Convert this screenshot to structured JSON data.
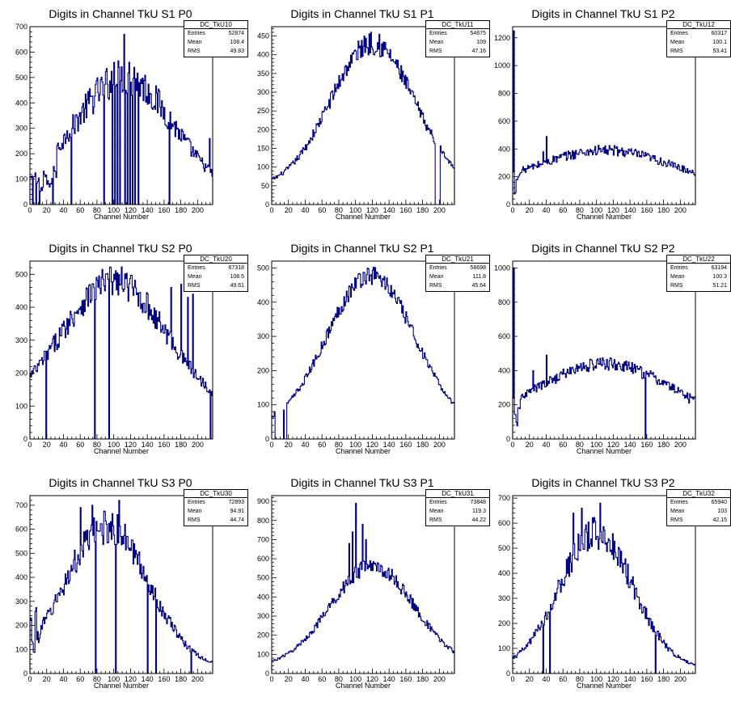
{
  "colors": {
    "histogram": "#000080",
    "frame": "#000000",
    "background": "#ffffff"
  },
  "chart_data": [
    {
      "type": "bar",
      "title": "Digits in Channel TkU S1 P0",
      "xlabel": "Channel Number",
      "ylabel": "",
      "xlim": [
        0,
        218
      ],
      "ylim": [
        0,
        700
      ],
      "xticks": [
        0,
        20,
        40,
        60,
        80,
        100,
        120,
        140,
        160,
        180,
        200
      ],
      "yticks": [
        0,
        100,
        200,
        300,
        400,
        500,
        600,
        700
      ],
      "stats": {
        "name": "DC_TkU10",
        "rows": [
          {
            "label": "Entries",
            "value": "52874"
          },
          {
            "label": "Mean",
            "value": "108.4"
          },
          {
            "label": "RMS",
            "value": "49.83"
          }
        ]
      },
      "shape": {
        "peak_x": 112,
        "peak_y": 500,
        "sigma": 60,
        "shape": "gauss",
        "base": 20,
        "noise": 0.15
      },
      "dips": [
        2,
        6,
        10,
        25,
        48,
        52,
        54,
        56,
        58,
        60,
        62,
        64,
        66,
        68,
        70,
        72,
        74,
        76,
        78,
        80,
        82,
        84,
        86,
        88,
        90,
        92,
        94,
        96,
        98,
        100,
        102,
        104,
        106,
        108,
        110,
        112,
        114,
        116,
        118,
        120,
        122,
        124,
        126,
        128,
        130,
        132,
        134,
        136,
        138,
        140,
        142,
        144,
        146,
        148,
        150,
        152,
        154,
        156,
        158,
        160,
        162,
        164,
        166,
        168,
        170,
        172,
        174,
        176,
        178,
        180,
        182,
        184,
        186,
        188,
        190,
        192,
        194,
        196,
        198,
        200,
        202,
        204,
        206,
        208,
        210,
        212,
        214
      ],
      "spikes": [
        {
          "x": 112,
          "y": 670
        },
        {
          "x": 100,
          "y": 560
        },
        {
          "x": 118,
          "y": 560
        },
        {
          "x": 124,
          "y": 540
        },
        {
          "x": 98,
          "y": 510
        },
        {
          "x": 130,
          "y": 480
        },
        {
          "x": 214,
          "y": 260
        },
        {
          "x": 44,
          "y": 290
        }
      ],
      "zero_channels": [
        3,
        7,
        11,
        27,
        49,
        88,
        98,
        101,
        104,
        107,
        113,
        116,
        119,
        122,
        125,
        129,
        166
      ],
      "lowfill": [
        [
          0,
          100
        ],
        [
          4,
          120
        ],
        [
          8,
          90
        ],
        [
          12,
          60
        ],
        [
          16,
          120
        ],
        [
          20,
          80
        ],
        [
          24,
          100
        ],
        [
          28,
          130
        ]
      ]
    },
    {
      "type": "bar",
      "title": "Digits in Channel TkU S1 P1",
      "xlabel": "Channel Number",
      "ylabel": "",
      "xlim": [
        0,
        218
      ],
      "ylim": [
        0,
        475
      ],
      "xticks": [
        0,
        20,
        40,
        60,
        80,
        100,
        120,
        140,
        160,
        180,
        200
      ],
      "yticks": [
        0,
        50,
        100,
        150,
        200,
        250,
        300,
        350,
        400,
        450
      ],
      "stats": {
        "name": "DC_TkU11",
        "rows": [
          {
            "label": "Entries",
            "value": "54675"
          },
          {
            "label": "Mean",
            "value": "109"
          },
          {
            "label": "RMS",
            "value": "47.16"
          }
        ]
      },
      "shape": {
        "peak_x": 120,
        "peak_y": 430,
        "sigma": 50,
        "shape": "gauss",
        "base": 45,
        "noise": 0.07
      },
      "spikes": [
        {
          "x": 118,
          "y": 460
        },
        {
          "x": 110,
          "y": 450
        },
        {
          "x": 128,
          "y": 455
        }
      ],
      "zero_channels": [
        195,
        196,
        197,
        198,
        199,
        200
      ],
      "lowfill": []
    },
    {
      "type": "bar",
      "title": "Digits in Channel TkU S1 P2",
      "xlabel": "Channel Number",
      "ylabel": "",
      "xlim": [
        0,
        218
      ],
      "ylim": [
        0,
        1280
      ],
      "xticks": [
        0,
        20,
        40,
        60,
        80,
        100,
        120,
        140,
        160,
        180,
        200
      ],
      "yticks": [
        0,
        200,
        400,
        600,
        800,
        1000,
        1200
      ],
      "stats": {
        "name": "DC_TkU12",
        "rows": [
          {
            "label": "Entries",
            "value": "60317"
          },
          {
            "label": "Mean",
            "value": "100.1"
          },
          {
            "label": "RMS",
            "value": "53.41"
          }
        ]
      },
      "shape": {
        "peak_x": 110,
        "peak_y": 390,
        "sigma": 80,
        "shape": "gauss",
        "base": 120,
        "noise": 0.1
      },
      "spikes": [
        {
          "x": 1,
          "y": 1250
        },
        {
          "x": 40,
          "y": 490
        },
        {
          "x": 36,
          "y": 380
        }
      ],
      "zero_channels": [],
      "lowfill": [
        [
          2,
          90
        ],
        [
          4,
          200
        ],
        [
          6,
          180
        ],
        [
          8,
          250
        ]
      ]
    },
    {
      "type": "bar",
      "title": "Digits in Channel TkU S2 P0",
      "xlabel": "Channel Number",
      "ylabel": "",
      "xlim": [
        0,
        218
      ],
      "ylim": [
        0,
        540
      ],
      "xticks": [
        0,
        20,
        40,
        60,
        80,
        100,
        120,
        140,
        160,
        180,
        200
      ],
      "yticks": [
        0,
        100,
        200,
        300,
        400,
        500
      ],
      "stats": {
        "name": "DC_TkU20",
        "rows": [
          {
            "label": "Entries",
            "value": "67318"
          },
          {
            "label": "Mean",
            "value": "108.5"
          },
          {
            "label": "RMS",
            "value": "49.61"
          }
        ]
      },
      "shape": {
        "peak_x": 100,
        "peak_y": 480,
        "sigma": 62,
        "shape": "gauss",
        "base": 80,
        "noise": 0.1
      },
      "spikes": [
        {
          "x": 180,
          "y": 470
        },
        {
          "x": 168,
          "y": 460
        },
        {
          "x": 194,
          "y": 440
        },
        {
          "x": 188,
          "y": 430
        }
      ],
      "zero_channels": [
        19,
        77,
        94,
        215
      ],
      "lowfill": []
    },
    {
      "type": "bar",
      "title": "Digits in Channel TkU S2 P1",
      "xlabel": "Channel Number",
      "ylabel": "",
      "xlim": [
        0,
        218
      ],
      "ylim": [
        0,
        520
      ],
      "xticks": [
        0,
        20,
        40,
        60,
        80,
        100,
        120,
        140,
        160,
        180,
        200
      ],
      "yticks": [
        0,
        100,
        200,
        300,
        400,
        500
      ],
      "stats": {
        "name": "DC_TkU21",
        "rows": [
          {
            "label": "Entries",
            "value": "58698"
          },
          {
            "label": "Mean",
            "value": "111.8"
          },
          {
            "label": "RMS",
            "value": "45.64"
          }
        ]
      },
      "shape": {
        "peak_x": 118,
        "peak_y": 480,
        "sigma": 52,
        "shape": "gauss",
        "base": 30,
        "noise": 0.06
      },
      "spikes": [
        {
          "x": 3,
          "y": 80
        },
        {
          "x": 14,
          "y": 85
        }
      ],
      "zero_channels": [
        4,
        5,
        6,
        7,
        8,
        9,
        10,
        11,
        12,
        13,
        15,
        16,
        17
      ],
      "lowfill": []
    },
    {
      "type": "bar",
      "title": "Digits in Channel TkU S2 P2",
      "xlabel": "Channel Number",
      "ylabel": "",
      "xlim": [
        0,
        218
      ],
      "ylim": [
        0,
        1040
      ],
      "xticks": [
        0,
        20,
        40,
        60,
        80,
        100,
        120,
        140,
        160,
        180,
        200
      ],
      "yticks": [
        0,
        200,
        400,
        600,
        800,
        1000
      ],
      "stats": {
        "name": "DC_TkU22",
        "rows": [
          {
            "label": "Entries",
            "value": "63194"
          },
          {
            "label": "Mean",
            "value": "100.3"
          },
          {
            "label": "RMS",
            "value": "51.21"
          }
        ]
      },
      "shape": {
        "peak_x": 110,
        "peak_y": 440,
        "sigma": 78,
        "shape": "gauss",
        "base": 100,
        "noise": 0.09
      },
      "spikes": [
        {
          "x": 1,
          "y": 1000
        },
        {
          "x": 40,
          "y": 490
        },
        {
          "x": 210,
          "y": 210
        },
        {
          "x": 24,
          "y": 400
        }
      ],
      "zero_channels": [
        158
      ],
      "lowfill": [
        [
          2,
          140
        ],
        [
          4,
          90
        ],
        [
          6,
          200
        ]
      ]
    },
    {
      "type": "bar",
      "title": "Digits in Channel TkU S3 P0",
      "xlabel": "Channel Number",
      "ylabel": "",
      "xlim": [
        0,
        218
      ],
      "ylim": [
        0,
        740
      ],
      "xticks": [
        0,
        20,
        40,
        60,
        80,
        100,
        120,
        140,
        160,
        180,
        200
      ],
      "yticks": [
        0,
        100,
        200,
        300,
        400,
        500,
        600,
        700
      ],
      "stats": {
        "name": "DC_TkU30",
        "rows": [
          {
            "label": "Entries",
            "value": "72893"
          },
          {
            "label": "Mean",
            "value": "94.91"
          },
          {
            "label": "RMS",
            "value": "44.74"
          }
        ]
      },
      "shape": {
        "peak_x": 92,
        "peak_y": 610,
        "sigma": 50,
        "shape": "gauss",
        "base": 20,
        "noise": 0.12
      },
      "spikes": [
        {
          "x": 106,
          "y": 720
        },
        {
          "x": 60,
          "y": 690
        },
        {
          "x": 98,
          "y": 665
        },
        {
          "x": 74,
          "y": 700
        }
      ],
      "zero_channels": [
        78,
        102,
        140,
        150,
        192
      ],
      "lowfill": [
        [
          0,
          200
        ],
        [
          2,
          150
        ],
        [
          4,
          90
        ],
        [
          6,
          300
        ],
        [
          8,
          150
        ]
      ]
    },
    {
      "type": "bar",
      "title": "Digits in Channel TkU S3 P1",
      "xlabel": "Channel Number",
      "ylabel": "",
      "xlim": [
        0,
        218
      ],
      "ylim": [
        0,
        930
      ],
      "xticks": [
        0,
        20,
        40,
        60,
        80,
        100,
        120,
        140,
        160,
        180,
        200
      ],
      "yticks": [
        0,
        100,
        200,
        300,
        400,
        500,
        600,
        700,
        800,
        900
      ],
      "stats": {
        "name": "DC_TkU31",
        "rows": [
          {
            "label": "Entries",
            "value": "73848"
          },
          {
            "label": "Mean",
            "value": "119.3"
          },
          {
            "label": "RMS",
            "value": "44.22"
          }
        ]
      },
      "shape": {
        "peak_x": 120,
        "peak_y": 560,
        "sigma": 50,
        "shape": "gauss",
        "base": 35,
        "noise": 0.08
      },
      "spikes": [
        {
          "x": 100,
          "y": 890
        },
        {
          "x": 108,
          "y": 780
        },
        {
          "x": 96,
          "y": 740
        },
        {
          "x": 112,
          "y": 700
        },
        {
          "x": 92,
          "y": 680
        }
      ],
      "zero_channels": [],
      "lowfill": []
    },
    {
      "type": "bar",
      "title": "Digits in Channel TkU S3 P2",
      "xlabel": "Channel Number",
      "ylabel": "",
      "xlim": [
        0,
        218
      ],
      "ylim": [
        0,
        710
      ],
      "xticks": [
        0,
        20,
        40,
        60,
        80,
        100,
        120,
        140,
        160,
        180,
        200
      ],
      "yticks": [
        0,
        100,
        200,
        300,
        400,
        500,
        600,
        700
      ],
      "stats": {
        "name": "DC_TkU32",
        "rows": [
          {
            "label": "Entries",
            "value": "65940"
          },
          {
            "label": "Mean",
            "value": "103"
          },
          {
            "label": "RMS",
            "value": "42.15"
          }
        ]
      },
      "shape": {
        "peak_x": 100,
        "peak_y": 560,
        "sigma": 44,
        "shape": "gauss",
        "base": 20,
        "noise": 0.12
      },
      "spikes": [
        {
          "x": 104,
          "y": 680
        },
        {
          "x": 82,
          "y": 660
        },
        {
          "x": 72,
          "y": 640
        }
      ],
      "zero_channels": [
        36,
        44,
        170
      ],
      "lowfill": []
    }
  ]
}
